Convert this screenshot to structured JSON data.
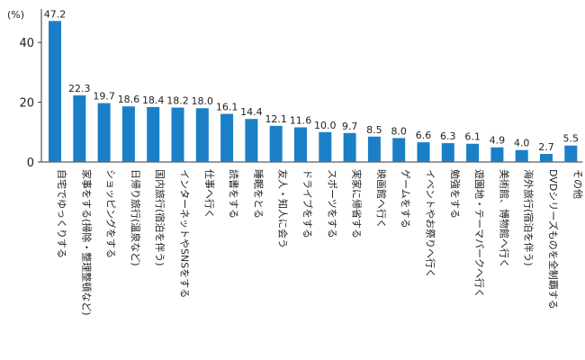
{
  "chart_data": {
    "type": "bar",
    "unit_label": "(%)",
    "ylim": [
      0,
      50
    ],
    "yticks": [
      0,
      20,
      40
    ],
    "grid": false,
    "bar_color": "#1a7fc7",
    "categories": [
      "自宅でゆっくりする",
      "家事をする(掃除・整理整頓など)",
      "ショッピングをする",
      "日帰り旅行(温泉など)",
      "国内旅行(宿泊を伴う)",
      "インターネットやSNSをする",
      "仕事へ行く",
      "読書をする",
      "睡眠をとる",
      "友人・知人に会う",
      "ドライブをする",
      "スポーツをする",
      "実家に帰省する",
      "映画館へ行く",
      "ゲームをする",
      "イベントやお祭りへ行く",
      "勉強をする",
      "遊園地・テーマパークへ行く",
      "美術館、博物館へ行く",
      "海外旅行(宿泊を伴う)",
      "DVDシリーズものを全制覇する",
      "その他"
    ],
    "values": [
      47.2,
      22.3,
      19.7,
      18.6,
      18.4,
      18.2,
      18.0,
      16.1,
      14.4,
      12.1,
      11.6,
      10.0,
      9.7,
      8.5,
      8.0,
      6.6,
      6.3,
      6.1,
      4.9,
      4.0,
      2.7,
      5.5
    ],
    "value_labels": [
      "47.2",
      "22.3",
      "19.7",
      "18.6",
      "18.4",
      "18.2",
      "18.0",
      "16.1",
      "14.4",
      "12.1",
      "11.6",
      "10.0",
      "9.7",
      "8.5",
      "8.0",
      "6.6",
      "6.3",
      "6.1",
      "4.9",
      "4.0",
      "2.7",
      "5.5"
    ]
  }
}
